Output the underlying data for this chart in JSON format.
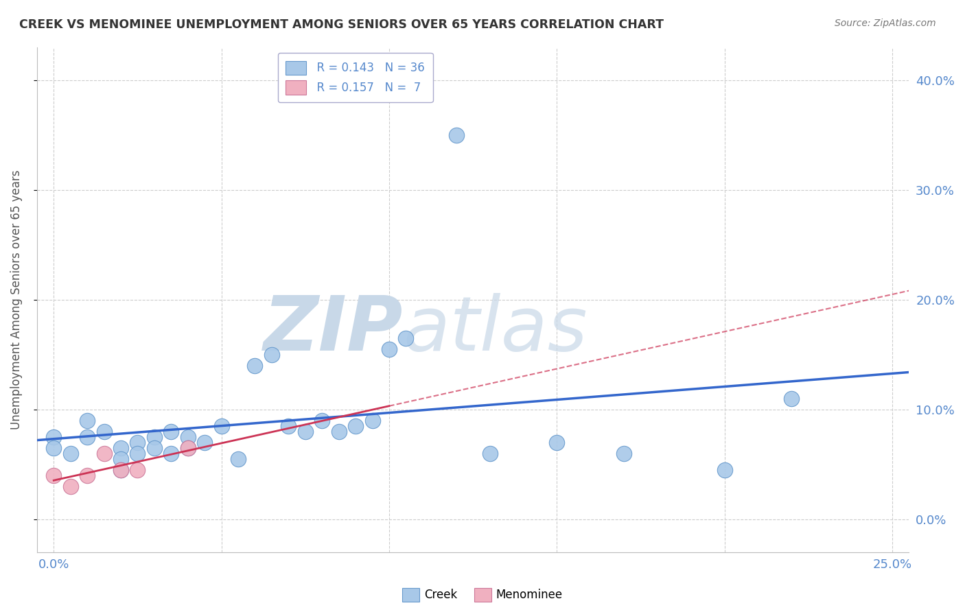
{
  "title": "CREEK VS MENOMINEE UNEMPLOYMENT AMONG SENIORS OVER 65 YEARS CORRELATION CHART",
  "source": "Source: ZipAtlas.com",
  "ylabel_label": "Unemployment Among Seniors over 65 years",
  "ytick_values": [
    0.0,
    0.1,
    0.2,
    0.3,
    0.4
  ],
  "ytick_labels": [
    "0.0%",
    "10.0%",
    "20.0%",
    "30.0%",
    "40.0%"
  ],
  "xtick_values": [
    0.0,
    0.05,
    0.1,
    0.15,
    0.2,
    0.25
  ],
  "xtick_labels": [
    "0.0%",
    "",
    "",
    "",
    "",
    "25.0%"
  ],
  "xlim": [
    -0.005,
    0.255
  ],
  "ylim": [
    -0.03,
    0.43
  ],
  "creek_color": "#a8c8e8",
  "creek_edge_color": "#6699cc",
  "menominee_color": "#f0b0c0",
  "menominee_edge_color": "#cc7799",
  "trendline_creek_color": "#3366cc",
  "trendline_menominee_color": "#cc3355",
  "legend_R_creek": "R = 0.143",
  "legend_N_creek": "N = 36",
  "legend_R_menominee": "R = 0.157",
  "legend_N_menominee": "N =  7",
  "creek_x": [
    0.0,
    0.0,
    0.005,
    0.01,
    0.01,
    0.015,
    0.02,
    0.02,
    0.02,
    0.025,
    0.025,
    0.03,
    0.03,
    0.035,
    0.035,
    0.04,
    0.04,
    0.045,
    0.05,
    0.055,
    0.06,
    0.065,
    0.07,
    0.075,
    0.08,
    0.085,
    0.09,
    0.095,
    0.1,
    0.105,
    0.12,
    0.13,
    0.15,
    0.17,
    0.2,
    0.22
  ],
  "creek_y": [
    0.075,
    0.065,
    0.06,
    0.09,
    0.075,
    0.08,
    0.065,
    0.055,
    0.045,
    0.07,
    0.06,
    0.075,
    0.065,
    0.08,
    0.06,
    0.075,
    0.065,
    0.07,
    0.085,
    0.055,
    0.14,
    0.15,
    0.085,
    0.08,
    0.09,
    0.08,
    0.085,
    0.09,
    0.155,
    0.165,
    0.35,
    0.06,
    0.07,
    0.06,
    0.045,
    0.11
  ],
  "menominee_x": [
    0.0,
    0.005,
    0.01,
    0.015,
    0.02,
    0.025,
    0.04
  ],
  "menominee_y": [
    0.04,
    0.03,
    0.04,
    0.06,
    0.045,
    0.045,
    0.065
  ],
  "background_color": "#ffffff",
  "grid_color": "#cccccc",
  "watermark_zip_color": "#c8d8e8",
  "watermark_atlas_color": "#c8d8e8"
}
